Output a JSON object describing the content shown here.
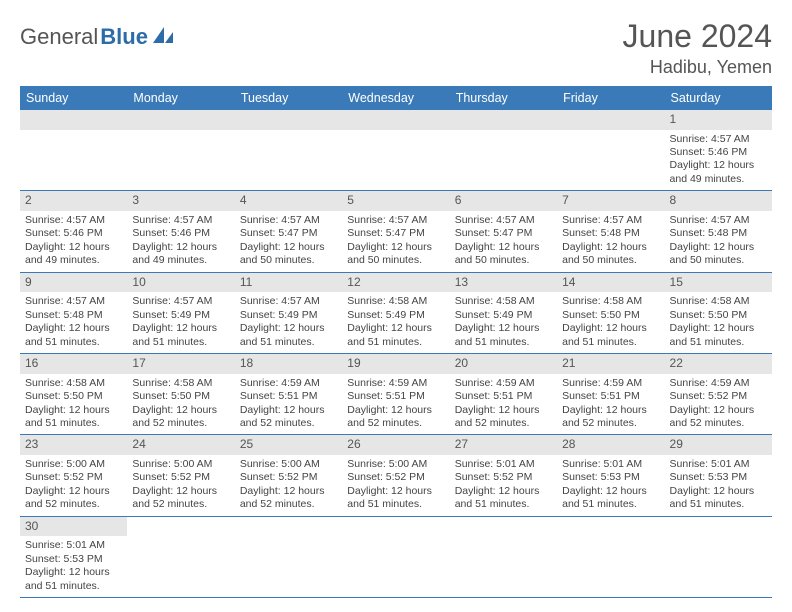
{
  "brand": {
    "part1": "General",
    "part2": "Blue"
  },
  "title": "June 2024",
  "location": "Hadibu, Yemen",
  "colors": {
    "header_bg": "#3b7ab8",
    "header_fg": "#ffffff",
    "daynum_bg": "#e6e6e6",
    "text": "#444444",
    "border": "#3b7ab8"
  },
  "day_headers": [
    "Sunday",
    "Monday",
    "Tuesday",
    "Wednesday",
    "Thursday",
    "Friday",
    "Saturday"
  ],
  "weeks": [
    [
      {
        "n": "",
        "lines": []
      },
      {
        "n": "",
        "lines": []
      },
      {
        "n": "",
        "lines": []
      },
      {
        "n": "",
        "lines": []
      },
      {
        "n": "",
        "lines": []
      },
      {
        "n": "",
        "lines": []
      },
      {
        "n": "1",
        "lines": [
          "Sunrise: 4:57 AM",
          "Sunset: 5:46 PM",
          "Daylight: 12 hours",
          "and 49 minutes."
        ]
      }
    ],
    [
      {
        "n": "2",
        "lines": [
          "Sunrise: 4:57 AM",
          "Sunset: 5:46 PM",
          "Daylight: 12 hours",
          "and 49 minutes."
        ]
      },
      {
        "n": "3",
        "lines": [
          "Sunrise: 4:57 AM",
          "Sunset: 5:46 PM",
          "Daylight: 12 hours",
          "and 49 minutes."
        ]
      },
      {
        "n": "4",
        "lines": [
          "Sunrise: 4:57 AM",
          "Sunset: 5:47 PM",
          "Daylight: 12 hours",
          "and 50 minutes."
        ]
      },
      {
        "n": "5",
        "lines": [
          "Sunrise: 4:57 AM",
          "Sunset: 5:47 PM",
          "Daylight: 12 hours",
          "and 50 minutes."
        ]
      },
      {
        "n": "6",
        "lines": [
          "Sunrise: 4:57 AM",
          "Sunset: 5:47 PM",
          "Daylight: 12 hours",
          "and 50 minutes."
        ]
      },
      {
        "n": "7",
        "lines": [
          "Sunrise: 4:57 AM",
          "Sunset: 5:48 PM",
          "Daylight: 12 hours",
          "and 50 minutes."
        ]
      },
      {
        "n": "8",
        "lines": [
          "Sunrise: 4:57 AM",
          "Sunset: 5:48 PM",
          "Daylight: 12 hours",
          "and 50 minutes."
        ]
      }
    ],
    [
      {
        "n": "9",
        "lines": [
          "Sunrise: 4:57 AM",
          "Sunset: 5:48 PM",
          "Daylight: 12 hours",
          "and 51 minutes."
        ]
      },
      {
        "n": "10",
        "lines": [
          "Sunrise: 4:57 AM",
          "Sunset: 5:49 PM",
          "Daylight: 12 hours",
          "and 51 minutes."
        ]
      },
      {
        "n": "11",
        "lines": [
          "Sunrise: 4:57 AM",
          "Sunset: 5:49 PM",
          "Daylight: 12 hours",
          "and 51 minutes."
        ]
      },
      {
        "n": "12",
        "lines": [
          "Sunrise: 4:58 AM",
          "Sunset: 5:49 PM",
          "Daylight: 12 hours",
          "and 51 minutes."
        ]
      },
      {
        "n": "13",
        "lines": [
          "Sunrise: 4:58 AM",
          "Sunset: 5:49 PM",
          "Daylight: 12 hours",
          "and 51 minutes."
        ]
      },
      {
        "n": "14",
        "lines": [
          "Sunrise: 4:58 AM",
          "Sunset: 5:50 PM",
          "Daylight: 12 hours",
          "and 51 minutes."
        ]
      },
      {
        "n": "15",
        "lines": [
          "Sunrise: 4:58 AM",
          "Sunset: 5:50 PM",
          "Daylight: 12 hours",
          "and 51 minutes."
        ]
      }
    ],
    [
      {
        "n": "16",
        "lines": [
          "Sunrise: 4:58 AM",
          "Sunset: 5:50 PM",
          "Daylight: 12 hours",
          "and 51 minutes."
        ]
      },
      {
        "n": "17",
        "lines": [
          "Sunrise: 4:58 AM",
          "Sunset: 5:50 PM",
          "Daylight: 12 hours",
          "and 52 minutes."
        ]
      },
      {
        "n": "18",
        "lines": [
          "Sunrise: 4:59 AM",
          "Sunset: 5:51 PM",
          "Daylight: 12 hours",
          "and 52 minutes."
        ]
      },
      {
        "n": "19",
        "lines": [
          "Sunrise: 4:59 AM",
          "Sunset: 5:51 PM",
          "Daylight: 12 hours",
          "and 52 minutes."
        ]
      },
      {
        "n": "20",
        "lines": [
          "Sunrise: 4:59 AM",
          "Sunset: 5:51 PM",
          "Daylight: 12 hours",
          "and 52 minutes."
        ]
      },
      {
        "n": "21",
        "lines": [
          "Sunrise: 4:59 AM",
          "Sunset: 5:51 PM",
          "Daylight: 12 hours",
          "and 52 minutes."
        ]
      },
      {
        "n": "22",
        "lines": [
          "Sunrise: 4:59 AM",
          "Sunset: 5:52 PM",
          "Daylight: 12 hours",
          "and 52 minutes."
        ]
      }
    ],
    [
      {
        "n": "23",
        "lines": [
          "Sunrise: 5:00 AM",
          "Sunset: 5:52 PM",
          "Daylight: 12 hours",
          "and 52 minutes."
        ]
      },
      {
        "n": "24",
        "lines": [
          "Sunrise: 5:00 AM",
          "Sunset: 5:52 PM",
          "Daylight: 12 hours",
          "and 52 minutes."
        ]
      },
      {
        "n": "25",
        "lines": [
          "Sunrise: 5:00 AM",
          "Sunset: 5:52 PM",
          "Daylight: 12 hours",
          "and 52 minutes."
        ]
      },
      {
        "n": "26",
        "lines": [
          "Sunrise: 5:00 AM",
          "Sunset: 5:52 PM",
          "Daylight: 12 hours",
          "and 51 minutes."
        ]
      },
      {
        "n": "27",
        "lines": [
          "Sunrise: 5:01 AM",
          "Sunset: 5:52 PM",
          "Daylight: 12 hours",
          "and 51 minutes."
        ]
      },
      {
        "n": "28",
        "lines": [
          "Sunrise: 5:01 AM",
          "Sunset: 5:53 PM",
          "Daylight: 12 hours",
          "and 51 minutes."
        ]
      },
      {
        "n": "29",
        "lines": [
          "Sunrise: 5:01 AM",
          "Sunset: 5:53 PM",
          "Daylight: 12 hours",
          "and 51 minutes."
        ]
      }
    ],
    [
      {
        "n": "30",
        "lines": [
          "Sunrise: 5:01 AM",
          "Sunset: 5:53 PM",
          "Daylight: 12 hours",
          "and 51 minutes."
        ]
      },
      {
        "n": "",
        "lines": []
      },
      {
        "n": "",
        "lines": []
      },
      {
        "n": "",
        "lines": []
      },
      {
        "n": "",
        "lines": []
      },
      {
        "n": "",
        "lines": []
      },
      {
        "n": "",
        "lines": []
      }
    ]
  ]
}
